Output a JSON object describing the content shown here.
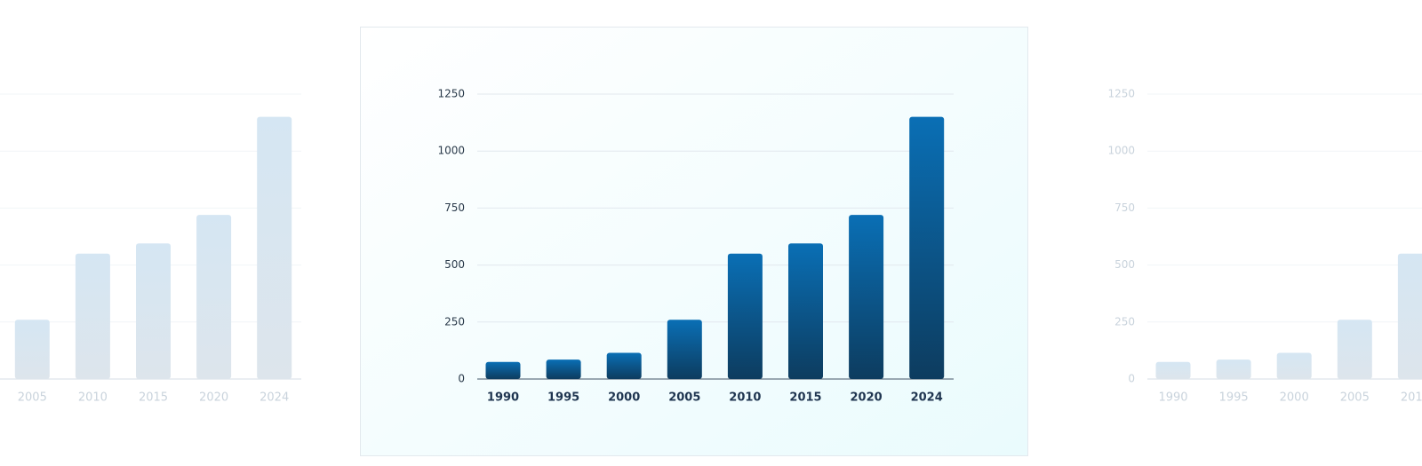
{
  "chart_data": {
    "type": "bar",
    "categories": [
      "1990",
      "1995",
      "2000",
      "2005",
      "2010",
      "2015",
      "2020",
      "2024"
    ],
    "values": [
      75,
      85,
      115,
      260,
      550,
      595,
      720,
      1150
    ],
    "color": "#0a6fb5",
    "ylim": [
      0,
      1250
    ],
    "yticks": [
      0,
      250,
      500,
      750,
      1000,
      1250
    ],
    "grid": true
  }
}
